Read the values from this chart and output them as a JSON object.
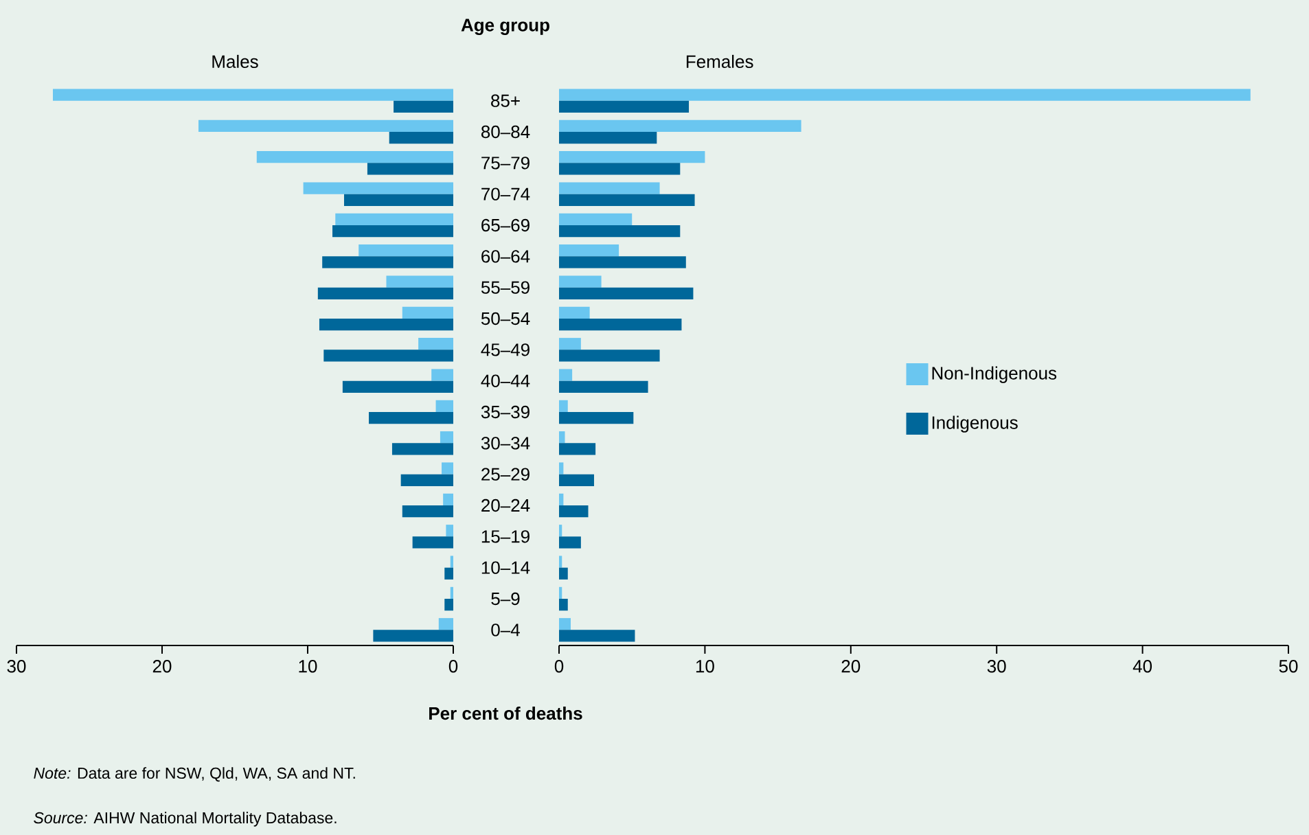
{
  "chart_data": [
    {
      "type": "bar",
      "orientation": "horizontal",
      "title": "Males",
      "ylabel": "Age group",
      "xlabel": "Per cent of deaths",
      "categories": [
        "85+",
        "80–84",
        "75–79",
        "70–74",
        "65–69",
        "60–64",
        "55–59",
        "50–54",
        "45–49",
        "40–44",
        "35–39",
        "30–34",
        "25–29",
        "20–24",
        "15–19",
        "10–14",
        "5–9",
        "0–4"
      ],
      "series": [
        {
          "color": "#6ac6f0",
          "values": [
            27.5,
            17.5,
            13.5,
            10.3,
            8.1,
            6.5,
            4.6,
            3.5,
            2.4,
            1.5,
            1.2,
            0.9,
            0.8,
            0.7,
            0.5,
            0.2,
            0.2,
            1.0
          ]
        },
        {
          "color": "#00679a",
          "values": [
            4.1,
            4.4,
            5.9,
            7.5,
            8.3,
            9.0,
            9.3,
            9.2,
            8.9,
            7.6,
            5.8,
            4.2,
            3.6,
            3.5,
            2.8,
            0.6,
            0.6,
            5.5
          ]
        }
      ],
      "xlim": [
        30,
        0
      ],
      "xticks": [
        0,
        10,
        20,
        30
      ],
      "annotations": [
        "*Note:* Data are for NSW, Qld, WA, SA and NT.",
        "*Source:* AIHW National Mortality Database."
      ]
    },
    {
      "type": "bar",
      "orientation": "horizontal",
      "title": "Females",
      "categories": [
        null,
        null,
        null,
        null,
        null,
        null,
        null,
        null,
        null,
        null,
        null,
        null,
        null,
        null,
        null,
        null,
        null,
        null
      ],
      "series": [
        {
          "name": "Non-Indigenous",
          "color": "#6ac6f0",
          "values": [
            47.4,
            16.6,
            10.0,
            6.9,
            5.0,
            4.1,
            2.9,
            2.1,
            1.5,
            0.9,
            0.6,
            0.4,
            0.3,
            0.3,
            0.2,
            0.2,
            0.2,
            0.8
          ]
        },
        {
          "name": "Indigenous",
          "color": "#00679a",
          "values": [
            8.9,
            6.7,
            8.3,
            9.3,
            8.3,
            8.7,
            9.2,
            8.4,
            6.9,
            6.1,
            5.1,
            2.5,
            2.4,
            2.0,
            1.5,
            0.6,
            0.6,
            5.2
          ]
        }
      ],
      "xlim": [
        0,
        50
      ],
      "xticks": [
        0,
        10,
        20,
        30,
        40,
        50
      ],
      "legend": "right",
      "tick_labels": "x"
    }
  ]
}
